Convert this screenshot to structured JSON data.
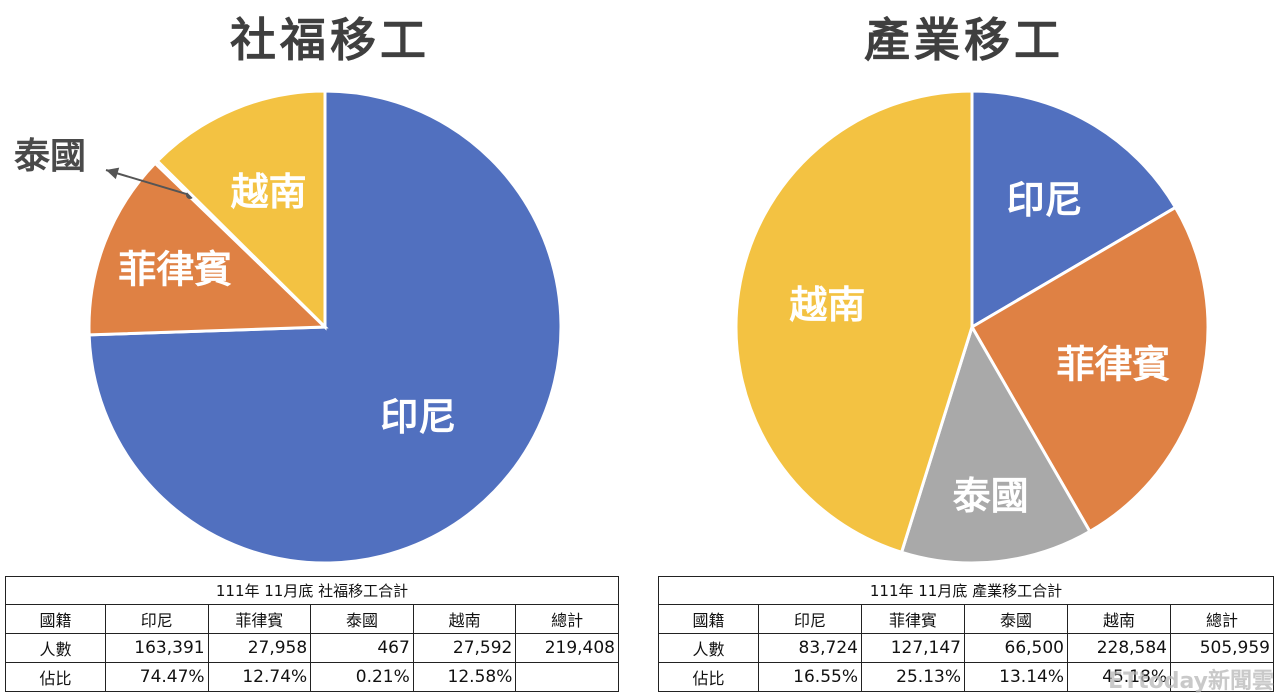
{
  "chart_data": [
    {
      "type": "pie",
      "title": "社福移工",
      "slices": [
        {
          "label": "印尼",
          "value": 163391,
          "color": "#5170BF"
        },
        {
          "label": "菲律賓",
          "value": 27958,
          "color": "#DF8144"
        },
        {
          "label": "泰國",
          "value": 467,
          "color": "#A9A9A9"
        },
        {
          "label": "越南",
          "value": 27592,
          "color": "#F3C242"
        }
      ],
      "callout_label": "泰國"
    },
    {
      "type": "pie",
      "title": "產業移工",
      "slices": [
        {
          "label": "印尼",
          "value": 83724,
          "color": "#5170BF"
        },
        {
          "label": "菲律賓",
          "value": 127147,
          "color": "#DF8144"
        },
        {
          "label": "泰國",
          "value": 66500,
          "color": "#A9A9A9"
        },
        {
          "label": "越南",
          "value": 228584,
          "color": "#F3C242"
        }
      ]
    }
  ],
  "tables": {
    "left": {
      "caption": "111年 11月底 社福移工合計",
      "headers": [
        "國籍",
        "印尼",
        "菲律賓",
        "泰國",
        "越南",
        "總計"
      ],
      "rows": [
        [
          "人數",
          "163,391",
          "27,958",
          "467",
          "27,592",
          "219,408"
        ],
        [
          "佔比",
          "74.47%",
          "12.74%",
          "0.21%",
          "12.58%",
          ""
        ]
      ]
    },
    "right": {
      "caption": "111年 11月底 產業移工合計",
      "headers": [
        "國籍",
        "印尼",
        "菲律賓",
        "泰國",
        "越南",
        "總計"
      ],
      "rows": [
        [
          "人數",
          "83,724",
          "127,147",
          "66,500",
          "228,584",
          "505,959"
        ],
        [
          "佔比",
          "16.55%",
          "25.13%",
          "13.14%",
          "45.18%",
          ""
        ]
      ]
    }
  },
  "watermark": "ETtoday新聞雲"
}
